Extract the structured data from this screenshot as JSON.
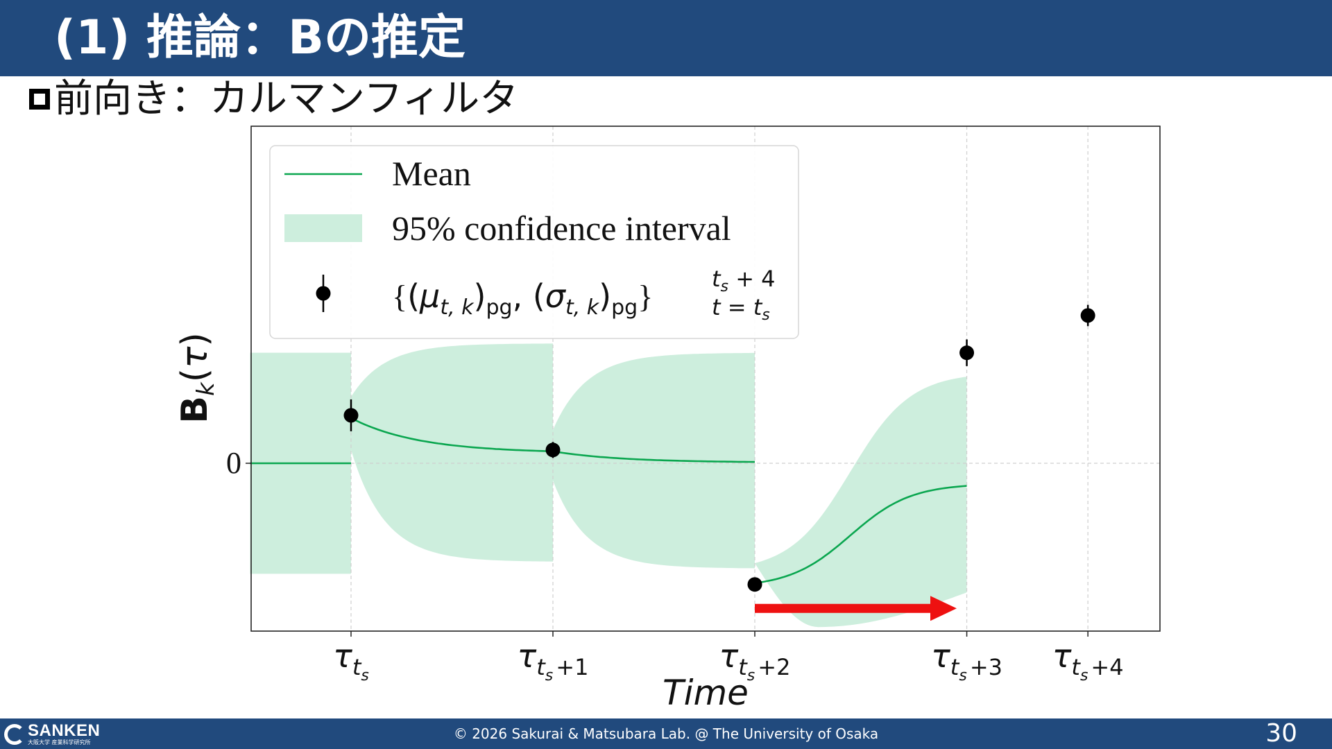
{
  "slide": {
    "title": "(1) 推論：Bの推定",
    "subtitle": "前向き：カルマンフィルタ",
    "copyright": "© 2026 Sakurai & Matsubara Lab. @ The University of Osaka",
    "page_number": "30",
    "logo": {
      "name": "SANKEN",
      "sub": "大阪大学 産業科学研究所"
    }
  },
  "chart_data": {
    "type": "line",
    "xlabel": "Time",
    "ylabel": "B_k(τ)",
    "xlim": [
      -0.5,
      4.35
    ],
    "ylim": [
      -1.27,
      2.55
    ],
    "grid": true,
    "legend_position": "top-left",
    "colors": {
      "mean": "#0aa64f",
      "interval": "#cdeedd",
      "points": "#000000",
      "arrow": "#ee1111"
    },
    "x_ticks": [
      {
        "x": 0,
        "base": "τ",
        "sub": "t",
        "subsub": "s",
        "suffix": ""
      },
      {
        "x": 1,
        "base": "τ",
        "sub": "t",
        "subsub": "s",
        "suffix": "+1"
      },
      {
        "x": 2,
        "base": "τ",
        "sub": "t",
        "subsub": "s",
        "suffix": "+2"
      },
      {
        "x": 3.05,
        "base": "τ",
        "sub": "t",
        "subsub": "s",
        "suffix": "+3"
      },
      {
        "x": 3.65,
        "base": "τ",
        "sub": "t",
        "subsub": "s",
        "suffix": "+4"
      }
    ],
    "y_ticks": [
      {
        "y": 0,
        "label": "0"
      }
    ],
    "legend": [
      {
        "kind": "line",
        "label": "Mean"
      },
      {
        "kind": "patch",
        "label": "95% confidence interval"
      },
      {
        "kind": "errorbar",
        "label": "{(μt,k)pg, (σt,k)pg} ts+4 t=ts"
      }
    ],
    "series": [
      {
        "name": "Mean",
        "segments": [
          {
            "x": [
              -0.5,
              0
            ],
            "y": [
              0,
              0
            ]
          },
          {
            "x": [
              0,
              1
            ],
            "y": [
              0.34,
              0.09
            ],
            "curve": "decay"
          },
          {
            "x": [
              1,
              2
            ],
            "y": [
              0.09,
              0.01
            ],
            "curve": "decay"
          },
          {
            "x": [
              2,
              3.05
            ],
            "y": [
              -0.9,
              -0.17
            ],
            "curve": "sigmoid"
          }
        ]
      },
      {
        "name": "95% confidence interval",
        "bands": [
          {
            "x": [
              -0.5,
              0
            ],
            "lower": [
              -0.83,
              -0.83
            ],
            "upper": [
              0.83,
              0.83
            ],
            "shape": "flat"
          },
          {
            "x": [
              0,
              1
            ],
            "lower": [
              0.1,
              -0.74
            ],
            "upper": [
              0.5,
              0.9
            ],
            "shape": "flare"
          },
          {
            "x": [
              1,
              2
            ],
            "lower": [
              -0.13,
              -0.79
            ],
            "upper": [
              0.25,
              0.83
            ],
            "shape": "flare"
          },
          {
            "x": [
              2,
              3.05
            ],
            "lower": [
              -0.75,
              -0.97
            ],
            "upper": [
              -0.75,
              0.65
            ],
            "lower_profile": "dip",
            "lower_min": -1.23,
            "upper_profile": "sigmoid",
            "lower_end": -0.97
          }
        ]
      },
      {
        "name": "{(μt,k)pg, (σt,k)pg} ts+4 t=ts",
        "points": [
          {
            "x": 0,
            "y": 0.36,
            "err": 0.12
          },
          {
            "x": 1,
            "y": 0.1,
            "err": 0.06
          },
          {
            "x": 2,
            "y": -0.91,
            "err": 0.03
          },
          {
            "x": 3.05,
            "y": 0.83,
            "err": 0.1
          },
          {
            "x": 3.65,
            "y": 1.11,
            "err": 0.08
          }
        ]
      }
    ],
    "annotations": [
      {
        "type": "arrow",
        "x_from": 2,
        "x_to": 3,
        "y": -1.09
      }
    ]
  }
}
